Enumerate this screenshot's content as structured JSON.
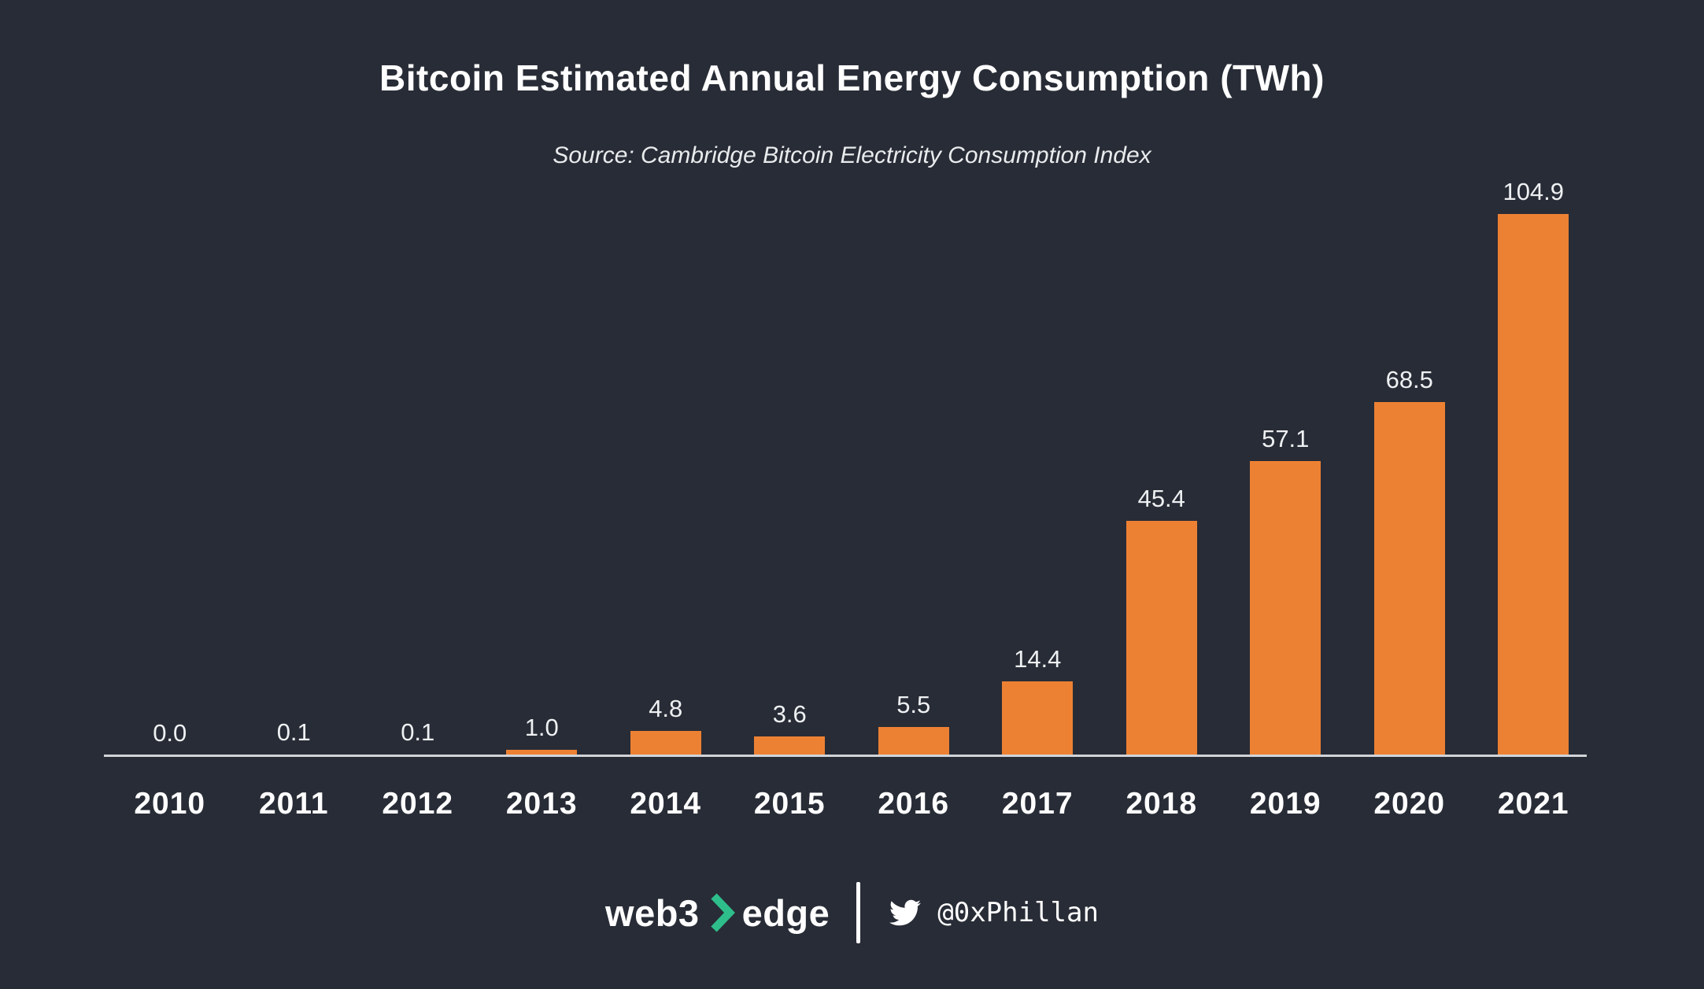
{
  "page": {
    "title": "Bitcoin Estimated Annual Energy Consumption (TWh)",
    "subtitle": "Source: Cambridge Bitcoin Electricity Consumption Index"
  },
  "chart_data": {
    "type": "bar",
    "title": "Bitcoin Estimated Annual Energy Consumption (TWh)",
    "subtitle": "Source: Cambridge Bitcoin Electricity Consumption Index",
    "categories": [
      "2010",
      "2011",
      "2012",
      "2013",
      "2014",
      "2015",
      "2016",
      "2017",
      "2018",
      "2019",
      "2020",
      "2021"
    ],
    "values": [
      0.0,
      0.1,
      0.1,
      1.0,
      4.8,
      3.6,
      5.5,
      14.4,
      45.4,
      57.1,
      68.5,
      104.9
    ],
    "unit": "TWh",
    "xlabel": "",
    "ylabel": "",
    "ylim": [
      0,
      110
    ],
    "grid": false,
    "legend_position": "none",
    "value_labels_shown": true,
    "bar_color": "#ED8133"
  },
  "colors": {
    "background": "#282C36",
    "bar": "#ED8133",
    "axis_line": "#D2D4D8",
    "text_primary": "#FFFFFF",
    "text_secondary": "#E9EBED",
    "accent_green": "#2EBE8B"
  },
  "footer": {
    "brand_part1": "web3",
    "brand_part2": "edge",
    "brand_chevron_icon": "chevron-right-icon",
    "twitter_icon": "twitter-bird-icon",
    "twitter_handle": "@0xPhillan"
  }
}
